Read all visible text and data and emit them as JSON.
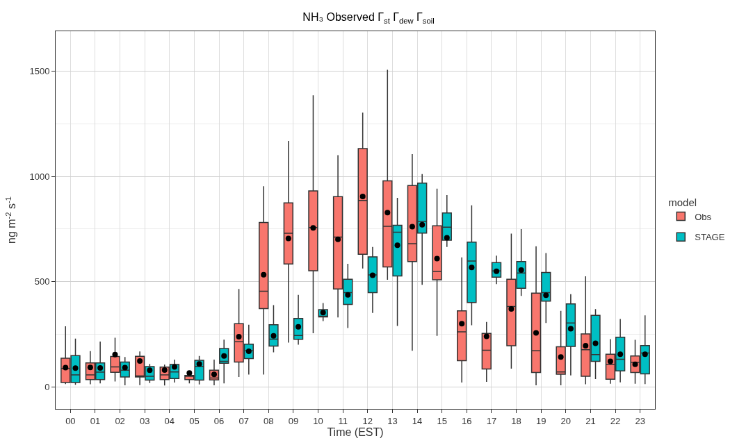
{
  "chart_data": {
    "type": "box",
    "title": "NH₃ Observed Γ$_{st}$ Γ$_{dew}$ Γ$_{soil}$",
    "xlabel": "Time (EST)",
    "ylabel": "ng m$^{-2}$ s$^{-1}$",
    "legend_title": "model",
    "categories": [
      "00",
      "01",
      "02",
      "03",
      "04",
      "05",
      "06",
      "07",
      "08",
      "09",
      "10",
      "11",
      "12",
      "13",
      "14",
      "15",
      "16",
      "17",
      "18",
      "19",
      "20",
      "21",
      "22",
      "23"
    ],
    "ylim": [
      -105,
      1690
    ],
    "yticks": [
      0,
      500,
      1000,
      1500
    ],
    "grid": true,
    "legend": "right",
    "marker": "circle",
    "series": [
      {
        "name": "Obs",
        "color": "#f8766d",
        "boxes": [
          {
            "low": 13,
            "q1": 20,
            "median": 87,
            "q3": 136,
            "high": 288,
            "mean": 91
          },
          {
            "low": 12,
            "q1": 34,
            "median": 57,
            "q3": 114,
            "high": 170,
            "mean": 92
          },
          {
            "low": 25,
            "q1": 69,
            "median": 95,
            "q3": 144,
            "high": 233,
            "mean": 153
          },
          {
            "low": 8,
            "q1": 47,
            "median": 52,
            "q3": 145,
            "high": 168,
            "mean": 123
          },
          {
            "low": 6,
            "q1": 34,
            "median": 57,
            "q3": 94,
            "high": 105,
            "mean": 80
          },
          {
            "low": 16,
            "q1": 34,
            "median": 50,
            "q3": 54,
            "high": 60,
            "mean": 66
          },
          {
            "low": 7,
            "q1": 33,
            "median": 42,
            "q3": 79,
            "high": 129,
            "mean": 59
          },
          {
            "low": 47,
            "q1": 118,
            "median": 214,
            "q3": 300,
            "high": 465,
            "mean": 238
          },
          {
            "low": 58,
            "q1": 372,
            "median": 454,
            "q3": 781,
            "high": 953,
            "mean": 533
          },
          {
            "low": 210,
            "q1": 584,
            "median": 730,
            "q3": 874,
            "high": 1169,
            "mean": 705
          },
          {
            "low": 255,
            "q1": 552,
            "median": 757,
            "q3": 931,
            "high": 1386,
            "mean": 755
          },
          {
            "low": 330,
            "q1": 465,
            "median": 712,
            "q3": 904,
            "high": 1101,
            "mean": 701
          },
          {
            "low": 562,
            "q1": 630,
            "median": 886,
            "q3": 1132,
            "high": 1303,
            "mean": 905
          },
          {
            "low": 509,
            "q1": 570,
            "median": 763,
            "q3": 979,
            "high": 1507,
            "mean": 828
          },
          {
            "low": 171,
            "q1": 595,
            "median": 680,
            "q3": 957,
            "high": 1106,
            "mean": 761
          },
          {
            "low": 242,
            "q1": 509,
            "median": 548,
            "q3": 765,
            "high": 942,
            "mean": 609
          },
          {
            "low": 20,
            "q1": 124,
            "median": 261,
            "q3": 361,
            "high": 615,
            "mean": 300
          },
          {
            "low": 24,
            "q1": 85,
            "median": 174,
            "q3": 254,
            "high": 308,
            "mean": 240
          },
          {
            "low": 86,
            "q1": 195,
            "median": 382,
            "q3": 511,
            "high": 728,
            "mean": 370
          },
          {
            "low": 7,
            "q1": 68,
            "median": 171,
            "q3": 445,
            "high": 668,
            "mean": 256
          },
          {
            "low": 7,
            "q1": 60,
            "median": 71,
            "q3": 190,
            "high": 361,
            "mean": 142
          },
          {
            "low": 12,
            "q1": 50,
            "median": 176,
            "q3": 251,
            "high": 525,
            "mean": 195
          },
          {
            "low": 15,
            "q1": 36,
            "median": 105,
            "q3": 155,
            "high": 227,
            "mean": 121
          },
          {
            "low": 15,
            "q1": 68,
            "median": 116,
            "q3": 147,
            "high": 223,
            "mean": 107
          }
        ]
      },
      {
        "name": "STAGE",
        "color": "#00bfc4",
        "boxes": [
          {
            "low": 10,
            "q1": 20,
            "median": 57,
            "q3": 148,
            "high": 229,
            "mean": 89
          },
          {
            "low": 16,
            "q1": 34,
            "median": 70,
            "q3": 114,
            "high": 215,
            "mean": 90
          },
          {
            "low": 7,
            "q1": 47,
            "median": 79,
            "q3": 118,
            "high": 142,
            "mean": 91
          },
          {
            "low": 18,
            "q1": 32,
            "median": 50,
            "q3": 96,
            "high": 109,
            "mean": 79
          },
          {
            "low": 20,
            "q1": 39,
            "median": 71,
            "q3": 106,
            "high": 129,
            "mean": 95
          },
          {
            "low": 11,
            "q1": 32,
            "median": 97,
            "q3": 126,
            "high": 147,
            "mean": 109
          },
          {
            "low": 16,
            "q1": 112,
            "median": 121,
            "q3": 182,
            "high": 224,
            "mean": 147
          },
          {
            "low": 58,
            "q1": 134,
            "median": 171,
            "q3": 203,
            "high": 295,
            "mean": 169
          },
          {
            "low": 164,
            "q1": 194,
            "median": 227,
            "q3": 295,
            "high": 388,
            "mean": 242
          },
          {
            "low": 200,
            "q1": 226,
            "median": 244,
            "q3": 325,
            "high": 437,
            "mean": 285
          },
          {
            "low": 312,
            "q1": 332,
            "median": 335,
            "q3": 367,
            "high": 398,
            "mean": 353
          },
          {
            "low": 279,
            "q1": 392,
            "median": 448,
            "q3": 511,
            "high": 585,
            "mean": 437
          },
          {
            "low": 351,
            "q1": 448,
            "median": 532,
            "q3": 618,
            "high": 665,
            "mean": 530
          },
          {
            "low": 289,
            "q1": 527,
            "median": 735,
            "q3": 768,
            "high": 898,
            "mean": 673
          },
          {
            "low": 485,
            "q1": 731,
            "median": 786,
            "q3": 968,
            "high": 1011,
            "mean": 770
          },
          {
            "low": 665,
            "q1": 697,
            "median": 759,
            "q3": 826,
            "high": 911,
            "mean": 708
          },
          {
            "low": 293,
            "q1": 401,
            "median": 598,
            "q3": 688,
            "high": 863,
            "mean": 567
          },
          {
            "low": 488,
            "q1": 521,
            "median": 551,
            "q3": 590,
            "high": 623,
            "mean": 549
          },
          {
            "low": 432,
            "q1": 468,
            "median": 541,
            "q3": 595,
            "high": 750,
            "mean": 555
          },
          {
            "low": 303,
            "q1": 407,
            "median": 448,
            "q3": 543,
            "high": 636,
            "mean": 435
          },
          {
            "low": 54,
            "q1": 192,
            "median": 303,
            "q3": 394,
            "high": 440,
            "mean": 276
          },
          {
            "low": 37,
            "q1": 121,
            "median": 153,
            "q3": 340,
            "high": 369,
            "mean": 207
          },
          {
            "low": 21,
            "q1": 76,
            "median": 131,
            "q3": 236,
            "high": 322,
            "mean": 155
          },
          {
            "low": 13,
            "q1": 62,
            "median": 161,
            "q3": 196,
            "high": 340,
            "mean": 155
          }
        ]
      }
    ]
  }
}
